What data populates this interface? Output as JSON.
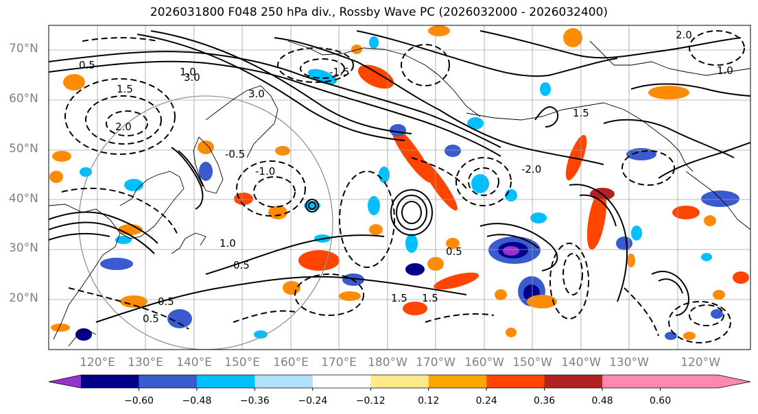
{
  "title": "2026031800 F048 250 hPa div., Rossby Wave PC (2026032000 - 2026032400)",
  "map": {
    "projection": "Cylindrical equidistant (Pacific-centered)",
    "lon_range": [
      110,
      255
    ],
    "lat_range": [
      10,
      75
    ],
    "lat_labels": [
      "70°N",
      "60°N",
      "50°N",
      "40°N",
      "30°N",
      "20°N"
    ],
    "lat_values": [
      70,
      60,
      50,
      40,
      30,
      20
    ],
    "lon_labels": [
      "120°E",
      "130°E",
      "140°E",
      "150°E",
      "160°E",
      "170°E",
      "180°W",
      "170°W",
      "160°W",
      "150°W",
      "140°W",
      "130°W",
      "120°W"
    ],
    "lon_values": [
      120,
      130,
      140,
      150,
      160,
      170,
      180,
      190,
      200,
      210,
      220,
      230,
      240
    ],
    "contour_labels": [
      "0.5",
      "1.0",
      "1.5",
      "2.0",
      "3.0",
      "-0.5",
      "-1.0",
      "-1.5",
      "-2.0",
      "1.5",
      "0.5",
      "3.0",
      "2.0",
      "0.5",
      "1.5",
      "1.0",
      "0.5",
      "0.5",
      "1.0",
      "1.5"
    ]
  },
  "colorbar": {
    "ticks": [
      "−0.60",
      "−0.48",
      "−0.36",
      "−0.24",
      "−0.12",
      "0.12",
      "0.24",
      "0.36",
      "0.48",
      "0.60"
    ],
    "colors": [
      "#9932cc",
      "#00008b",
      "#3a5bcf",
      "#00bfff",
      "#b0e0fa",
      "#ffffff",
      "#ffe98a",
      "#ffa500",
      "#ff4500",
      "#b22222",
      "#ff88b0",
      "#ff88b0"
    ],
    "extend": "both"
  }
}
